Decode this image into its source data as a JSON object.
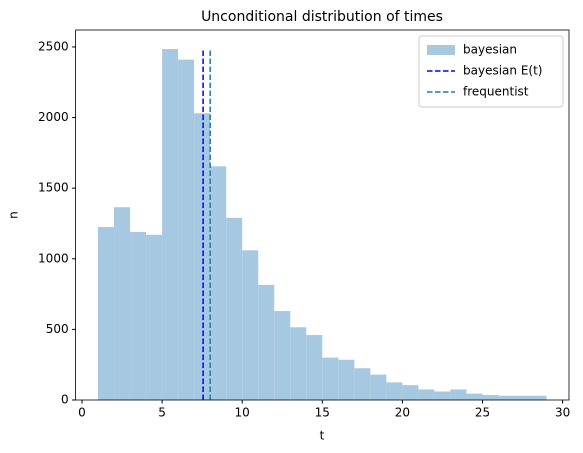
{
  "chart_data": {
    "type": "histogram",
    "title": "Unconditional distribution of times",
    "x_label": "t",
    "y_label": "n",
    "bins": [
      1,
      2,
      3,
      4,
      5,
      6,
      7,
      8,
      9,
      10,
      11,
      12,
      13,
      14,
      15,
      16,
      17,
      18,
      19,
      20,
      21,
      22,
      23,
      24,
      25,
      26,
      27,
      28,
      29
    ],
    "series": [
      {
        "name": "bayesian",
        "color": "#a6c8e0",
        "values": [
          1225,
          1365,
          1190,
          1170,
          2485,
          2410,
          2030,
          1655,
          1290,
          1060,
          815,
          630,
          515,
          460,
          300,
          285,
          225,
          180,
          125,
          105,
          75,
          60,
          75,
          45,
          35,
          30,
          30,
          30
        ]
      }
    ],
    "lines": [
      {
        "name": "bayesian E(t)",
        "color": "#0000ff",
        "x": 7.56
      },
      {
        "name": "frequentist",
        "color": "#1f77b4",
        "x": 8.0
      }
    ],
    "xlim": [
      -0.4,
      30.4
    ],
    "ylim": [
      0,
      2620
    ],
    "xticks": [
      0,
      5,
      10,
      15,
      20,
      25,
      30
    ],
    "yticks": [
      0,
      500,
      1000,
      1500,
      2000,
      2500
    ],
    "legend": "upper right"
  }
}
